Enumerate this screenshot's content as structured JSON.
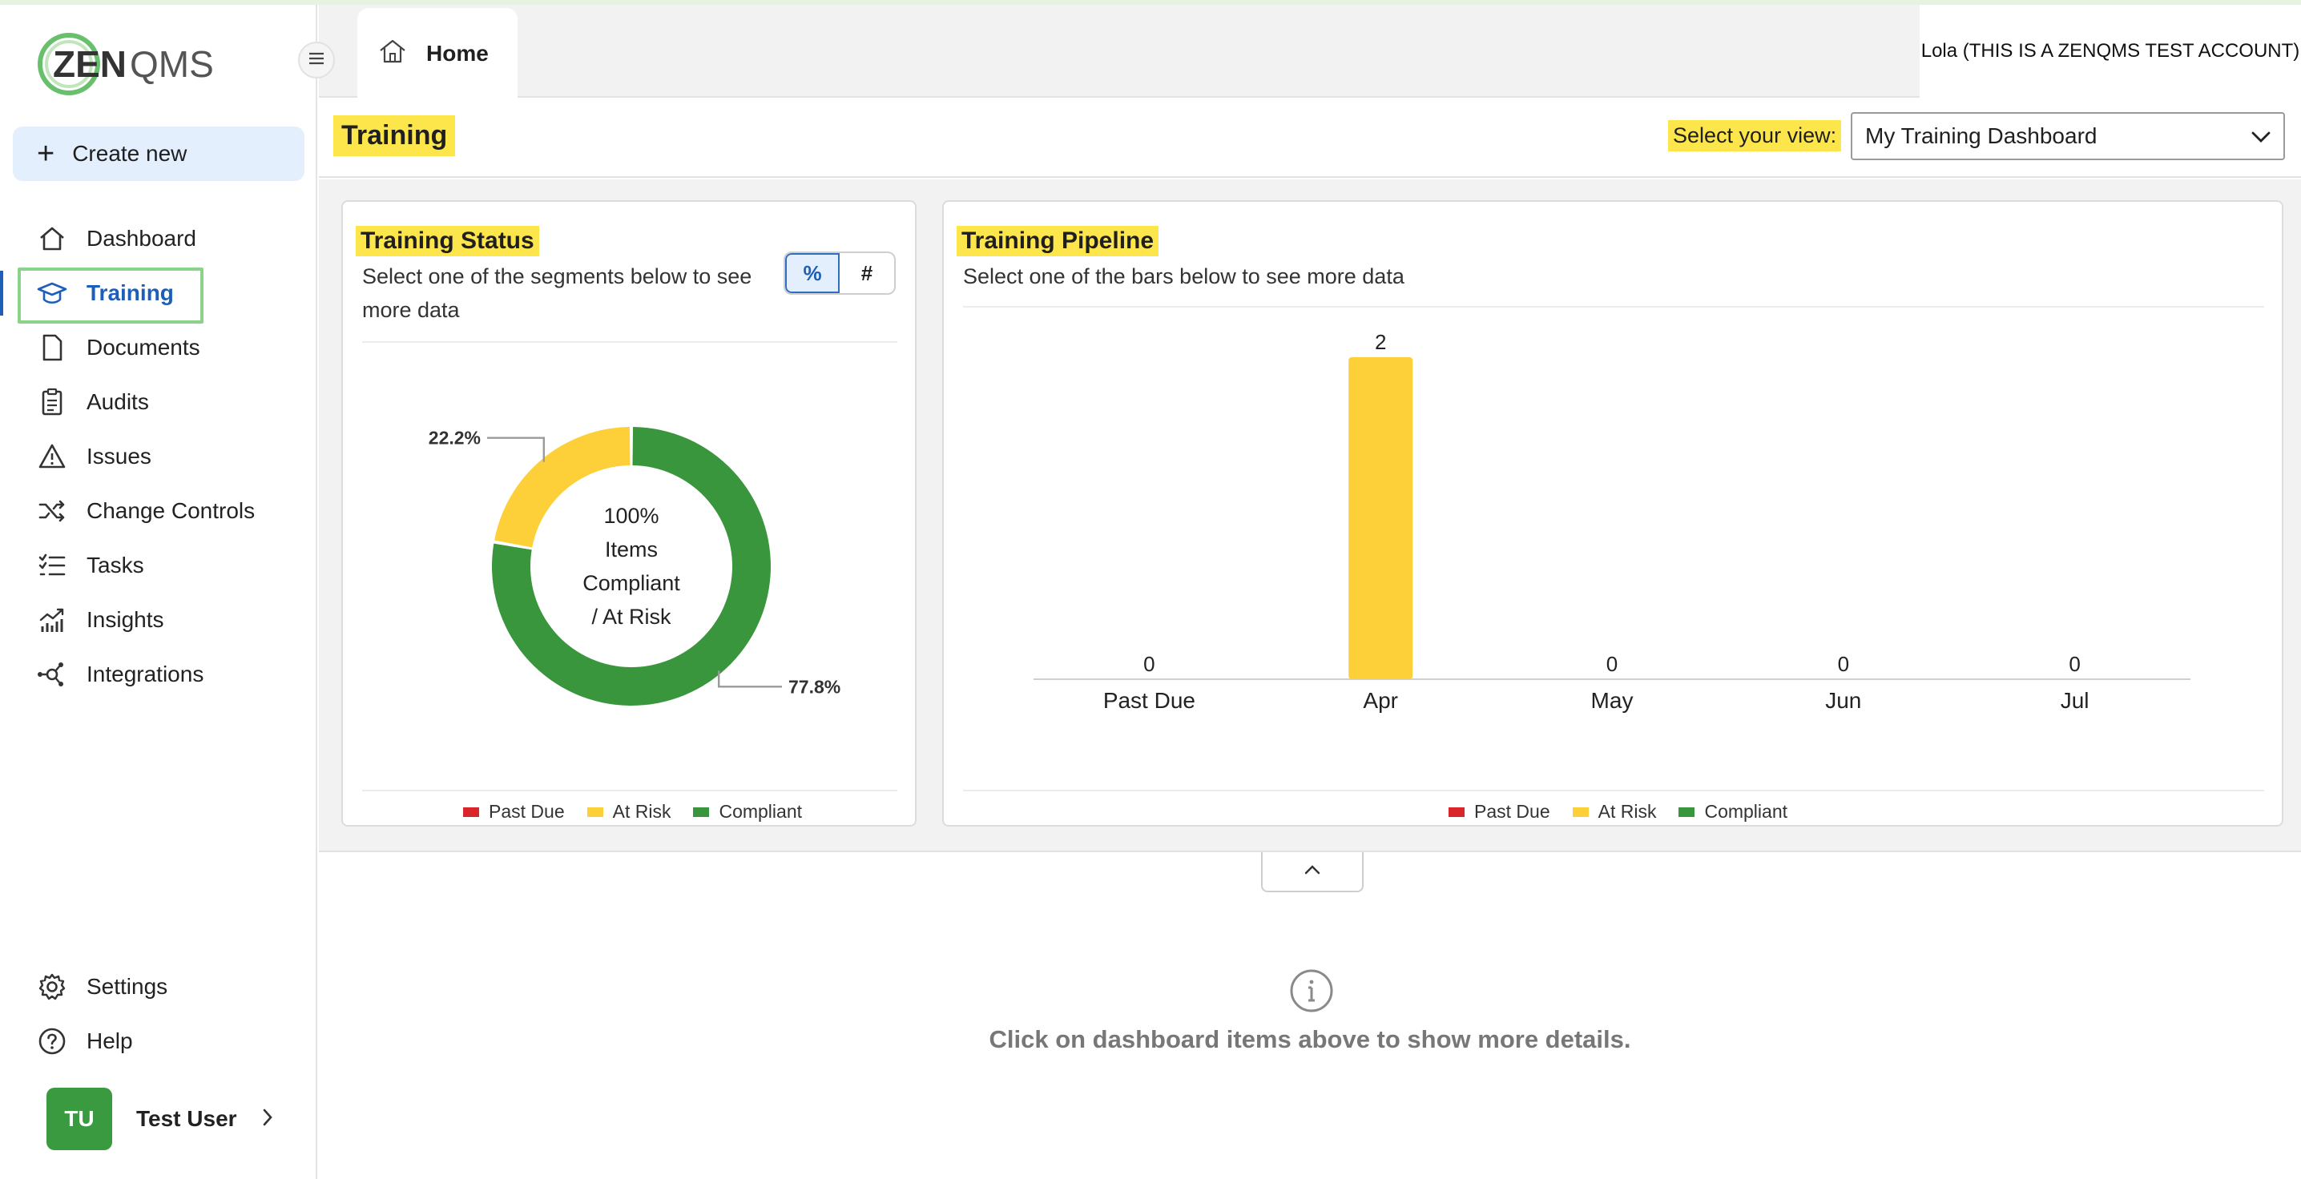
{
  "brand": {
    "logo_text_zen": "ZEN",
    "logo_text_qms": "QMS"
  },
  "sidebar": {
    "create_label": "Create new",
    "items": [
      {
        "label": "Dashboard",
        "icon": "home-icon"
      },
      {
        "label": "Training",
        "icon": "graduation-cap-icon",
        "active": true
      },
      {
        "label": "Documents",
        "icon": "document-icon"
      },
      {
        "label": "Audits",
        "icon": "clipboard-icon"
      },
      {
        "label": "Issues",
        "icon": "warning-icon"
      },
      {
        "label": "Change Controls",
        "icon": "shuffle-icon"
      },
      {
        "label": "Tasks",
        "icon": "checklist-icon"
      },
      {
        "label": "Insights",
        "icon": "insights-chart-icon"
      },
      {
        "label": "Integrations",
        "icon": "network-icon"
      }
    ],
    "bottom_items": [
      {
        "label": "Settings",
        "icon": "gear-icon"
      },
      {
        "label": "Help",
        "icon": "help-circle-icon"
      }
    ],
    "user": {
      "initials": "TU",
      "name": "Test User"
    }
  },
  "header": {
    "tab_home": "Home",
    "account": "Lola (THIS IS A ZENQMS TEST ACCOUNT)"
  },
  "titlebar": {
    "title": "Training",
    "view_label": "Select your view:",
    "view_value": "My Training Dashboard"
  },
  "status_card": {
    "title": "Training Status",
    "subtitle_line1": "Select one of the segments below to see",
    "subtitle_line2": "more data",
    "toggle_percent": "%",
    "toggle_count": "#",
    "center_lines": [
      "100%",
      "Items",
      "Compliant",
      "/ At Risk"
    ],
    "legend": [
      "Past Due",
      "At Risk",
      "Compliant"
    ]
  },
  "pipeline_card": {
    "title": "Training Pipeline",
    "subtitle": "Select one of the bars below to see more data",
    "legend": [
      "Past Due",
      "At Risk",
      "Compliant"
    ]
  },
  "colors": {
    "past_due": "#d9262b",
    "at_risk": "#fdd039",
    "compliant": "#3a963d",
    "highlight": "#fde64b",
    "accent": "#1d5fb8"
  },
  "chart_data": [
    {
      "type": "pie",
      "title": "Training Status",
      "slices": [
        {
          "label": "At Risk",
          "value": 22.2,
          "display": "22.2%"
        },
        {
          "label": "Compliant",
          "value": 77.8,
          "display": "77.8%"
        }
      ],
      "legend": [
        "Past Due",
        "At Risk",
        "Compliant"
      ],
      "legend_position": "bottom"
    },
    {
      "type": "bar",
      "title": "Training Pipeline",
      "categories": [
        "Past Due",
        "Apr",
        "May",
        "Jun",
        "Jul"
      ],
      "values": [
        0,
        2,
        0,
        0,
        0
      ],
      "ylim": [
        0,
        2
      ],
      "grid": false,
      "legend": [
        "Past Due",
        "At Risk",
        "Compliant"
      ],
      "legend_position": "bottom"
    }
  ],
  "detail": {
    "empty_message": "Click on dashboard items above to show more details."
  }
}
